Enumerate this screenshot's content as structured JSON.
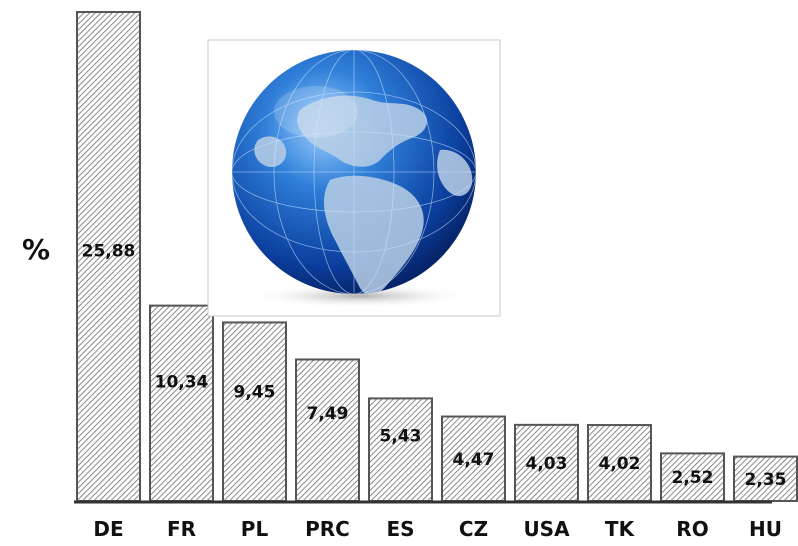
{
  "chart_data": {
    "type": "bar",
    "categories": [
      "DE",
      "FR",
      "PL",
      "PRC",
      "ES",
      "CZ",
      "USA",
      "TK",
      "RO",
      "HU"
    ],
    "values": [
      25.88,
      10.34,
      9.45,
      7.49,
      5.43,
      4.47,
      4.03,
      4.02,
      2.52,
      2.35
    ],
    "value_labels": [
      "25,88",
      "10,34",
      "9,45",
      "7,49",
      "5,43",
      "4,47",
      "4,03",
      "4,02",
      "2,52",
      "2,35"
    ],
    "title": "",
    "xlabel": "",
    "ylabel": "%",
    "ylim": [
      0,
      25.88
    ],
    "grid": false,
    "legend": "none",
    "bar_fill": "hatched",
    "bar_stroke": "#555555",
    "inset_image": "globe-icon"
  }
}
